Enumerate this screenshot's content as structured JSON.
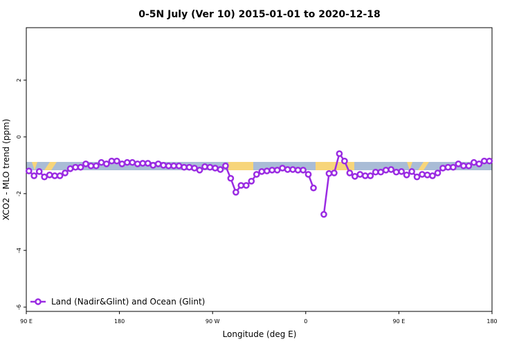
{
  "chart_data": {
    "type": "line",
    "title": "0-5N July (Ver 10)   2015-01-01 to 2020-12-18",
    "xlabel": "Longitude (deg E)",
    "ylabel": "XCO2 - MLO trend (ppm)",
    "xlim": [
      90,
      540
    ],
    "ylim": [
      -6.15,
      3.85
    ],
    "xticks": [
      {
        "value": 90,
        "label": "90 E"
      },
      180,
      {
        "value": 270,
        "label": "90 W"
      },
      {
        "value": 360,
        "label": "0"
      },
      {
        "value": 450,
        "label": "90 E"
      },
      {
        "value": 540,
        "label": "180"
      }
    ],
    "yticks": [
      -6,
      -4,
      -2,
      0,
      2
    ],
    "legend": "bottom-left",
    "x": [
      92.5,
      97.5,
      102.5,
      107.5,
      112.5,
      117.5,
      122.5,
      127.5,
      132.5,
      137.5,
      142.5,
      147.5,
      152.5,
      157.5,
      162.5,
      167.5,
      172.5,
      177.5,
      182.5,
      187.5,
      192.5,
      197.5,
      202.5,
      207.5,
      212.5,
      217.5,
      222.5,
      227.5,
      232.5,
      237.5,
      242.5,
      247.5,
      252.5,
      257.5,
      262.5,
      267.5,
      272.5,
      277.5,
      282.5,
      287.5,
      292.5,
      297.5,
      302.5,
      307.5,
      312.5,
      317.5,
      322.5,
      327.5,
      332.5,
      337.5,
      342.5,
      347.5,
      352.5,
      357.5,
      362.5,
      367.5,
      372.5,
      377.5,
      382.5,
      387.5,
      392.5,
      397.5,
      402.5,
      407.5,
      412.5,
      417.5,
      422.5,
      427.5,
      432.5,
      437.5,
      442.5,
      447.5,
      452.5,
      457.5,
      462.5,
      467.5,
      472.5,
      477.5,
      482.5,
      487.5,
      492.5,
      497.5,
      502.5,
      507.5,
      512.5,
      517.5,
      522.5,
      527.5,
      532.5,
      537.5
    ],
    "series": [
      {
        "name": "Land (Nadir&Glint) and Ocean (Glint)",
        "color": "#9a2be2",
        "values": [
          -1.2,
          -1.37,
          -1.22,
          -1.41,
          -1.34,
          -1.37,
          -1.37,
          -1.27,
          -1.12,
          -1.07,
          -1.07,
          -0.95,
          -1.02,
          -1.02,
          -0.9,
          -0.95,
          -0.85,
          -0.85,
          -0.95,
          -0.9,
          -0.9,
          -0.95,
          -0.93,
          -0.93,
          -1.0,
          -0.95,
          -1.0,
          -1.02,
          -1.02,
          -1.02,
          -1.07,
          -1.07,
          -1.1,
          -1.17,
          -1.05,
          -1.07,
          -1.1,
          -1.15,
          -1.02,
          -1.46,
          -1.95,
          -1.71,
          -1.71,
          -1.56,
          -1.32,
          -1.22,
          -1.2,
          -1.17,
          -1.17,
          -1.1,
          -1.15,
          -1.15,
          -1.17,
          -1.17,
          -1.32,
          -1.8,
          null,
          -2.73,
          -1.29,
          -1.27,
          -0.59,
          -0.85,
          -1.27,
          -1.39,
          -1.32,
          -1.37,
          -1.37,
          -1.24,
          -1.24,
          -1.17,
          -1.15,
          -1.24,
          -1.22,
          -1.34,
          -1.22,
          -1.41,
          -1.32,
          -1.34,
          -1.37,
          -1.27,
          -1.1,
          -1.07,
          -1.07,
          -0.95,
          -1.02,
          -1.02,
          -0.9,
          -0.95,
          -0.85,
          -0.85
        ]
      }
    ]
  }
}
